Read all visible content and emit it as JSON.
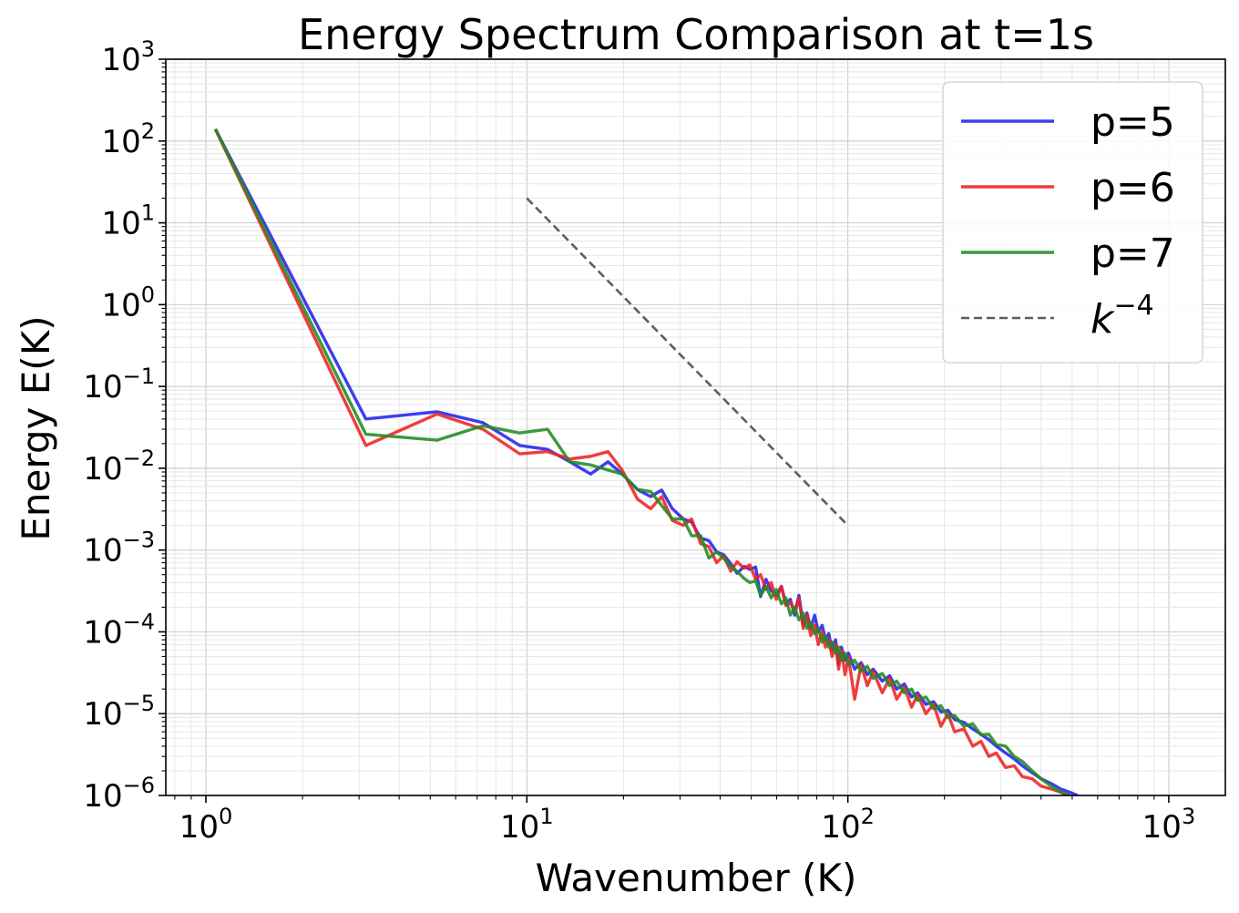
{
  "chart_data": {
    "type": "line",
    "title": "Energy Spectrum Comparison at t=1s",
    "xlabel": "Wavenumber (K)",
    "ylabel": "Energy E(K)",
    "xscale": "log",
    "yscale": "log",
    "xlim": [
      0.75,
      1500
    ],
    "ylim": [
      1e-06,
      1000
    ],
    "grid": true,
    "legend_position": "top-right",
    "x_ticks": [
      {
        "value": 1,
        "base": "10",
        "exp": "0"
      },
      {
        "value": 10,
        "base": "10",
        "exp": "1"
      },
      {
        "value": 100,
        "base": "10",
        "exp": "2"
      },
      {
        "value": 1000,
        "base": "10",
        "exp": "3"
      }
    ],
    "y_ticks": [
      {
        "value": 1e-06,
        "base": "10",
        "exp": "−6"
      },
      {
        "value": 1e-05,
        "base": "10",
        "exp": "−5"
      },
      {
        "value": 0.0001,
        "base": "10",
        "exp": "−4"
      },
      {
        "value": 0.001,
        "base": "10",
        "exp": "−3"
      },
      {
        "value": 0.01,
        "base": "10",
        "exp": "−2"
      },
      {
        "value": 0.1,
        "base": "10",
        "exp": "−1"
      },
      {
        "value": 1,
        "base": "10",
        "exp": "0"
      },
      {
        "value": 10,
        "base": "10",
        "exp": "1"
      },
      {
        "value": 100,
        "base": "10",
        "exp": "2"
      },
      {
        "value": 1000,
        "base": "10",
        "exp": "3"
      }
    ],
    "series": [
      {
        "name": "p=5",
        "color": "#2222ee",
        "x": [
          1.07,
          3.15,
          5.25,
          7.3,
          9.5,
          11.6,
          13.6,
          15.8,
          17.9,
          19.8,
          22.1,
          24.3,
          26.3,
          28.4,
          30.7,
          32.6,
          34.8,
          36.9,
          39.0,
          41.0,
          43.2,
          45.2,
          47.5,
          49.5,
          51.6,
          53.5,
          55.6,
          57.7,
          59.8,
          62.1,
          64.1,
          66.2,
          68.3,
          70.4,
          72.6,
          74.6,
          76.6,
          78.8,
          80.9,
          83.2,
          85.1,
          87.2,
          89.3,
          91.6,
          93.6,
          95.5,
          98.0,
          100.4,
          105,
          110,
          115,
          120,
          128,
          135,
          142,
          150,
          158,
          165,
          175,
          185,
          195,
          205,
          215,
          230,
          245,
          260,
          275,
          290,
          310,
          330,
          350,
          375,
          400,
          430,
          460,
          490,
          520
        ],
        "values": [
          140,
          0.04,
          0.049,
          0.036,
          0.019,
          0.017,
          0.012,
          0.0085,
          0.012,
          0.0085,
          0.0055,
          0.0045,
          0.0054,
          0.0032,
          0.0024,
          0.0022,
          0.0014,
          0.0013,
          0.00095,
          0.00088,
          0.00068,
          0.00052,
          0.00063,
          0.00058,
          0.00062,
          0.00027,
          0.00044,
          0.00032,
          0.00028,
          0.00036,
          0.00022,
          0.00025,
          0.00016,
          0.00028,
          0.00012,
          0.00017,
          0.00011,
          0.00016,
          0.0001,
          0.00012,
          8e-05,
          9.5e-05,
          6e-05,
          8e-05,
          4e-05,
          6.5e-05,
          4.5e-05,
          5.5e-05,
          3.5e-05,
          4.2e-05,
          3e-05,
          3.5e-05,
          2.5e-05,
          2.9e-05,
          2e-05,
          2.3e-05,
          1.6e-05,
          1.8e-05,
          1.3e-05,
          1.4e-05,
          1.05e-05,
          1.1e-05,
          8.5e-06,
          7.8e-06,
          6.5e-06,
          5.6e-06,
          4.8e-06,
          4e-06,
          3.3e-06,
          2.8e-06,
          2.3e-06,
          1.9e-06,
          1.6e-06,
          1.4e-06,
          1.2e-06,
          1.1e-06,
          1e-06
        ]
      },
      {
        "name": "p=6",
        "color": "#ee2222",
        "x": [
          1.07,
          3.15,
          5.25,
          7.3,
          9.5,
          11.6,
          13.6,
          15.8,
          17.9,
          19.8,
          22.1,
          24.3,
          26.3,
          28.4,
          30.7,
          32.6,
          34.8,
          36.9,
          39.0,
          41.0,
          43.2,
          45.2,
          47.5,
          49.5,
          51.6,
          53.5,
          55.6,
          57.7,
          59.8,
          62.1,
          64.1,
          66.2,
          68.3,
          70.4,
          72.6,
          74.6,
          76.6,
          78.8,
          80.9,
          83.2,
          85.1,
          87.2,
          89.3,
          91.6,
          93.6,
          95.5,
          98.0,
          100.4,
          105,
          110,
          115,
          120,
          128,
          135,
          142,
          150,
          158,
          165,
          175,
          185,
          195,
          205,
          215,
          230,
          245,
          260,
          275,
          290,
          310,
          330,
          350,
          375,
          400,
          430,
          460,
          490
        ],
        "values": [
          140,
          0.019,
          0.046,
          0.03,
          0.015,
          0.016,
          0.013,
          0.014,
          0.016,
          0.0095,
          0.0042,
          0.0032,
          0.0045,
          0.0023,
          0.002,
          0.0024,
          0.0012,
          0.0011,
          0.0007,
          0.00085,
          0.00055,
          0.00072,
          0.0006,
          0.00066,
          0.00044,
          0.0005,
          0.00033,
          0.0004,
          0.00025,
          0.00036,
          0.00021,
          0.00023,
          0.00018,
          0.00026,
          0.00011,
          0.00016,
          9e-05,
          0.00012,
          7e-05,
          0.0001,
          6.5e-05,
          8e-05,
          5e-05,
          7e-05,
          3.5e-05,
          6e-05,
          3e-05,
          5e-05,
          1.5e-05,
          4e-05,
          2.2e-05,
          3.3e-05,
          1.8e-05,
          2.7e-05,
          1.5e-05,
          2.1e-05,
          1.2e-05,
          1.7e-05,
          1e-05,
          1.3e-05,
          7e-06,
          1e-05,
          6e-06,
          6.5e-06,
          4e-06,
          4.6e-06,
          3e-06,
          3.3e-06,
          2.2e-06,
          2.3e-06,
          1.7e-06,
          1.6e-06,
          1.3e-06,
          1.2e-06,
          1.1e-06,
          1e-06
        ]
      },
      {
        "name": "p=7",
        "color": "#228b22",
        "x": [
          1.07,
          3.15,
          5.25,
          7.3,
          9.5,
          11.6,
          13.6,
          15.8,
          17.9,
          19.8,
          22.1,
          24.3,
          26.3,
          28.4,
          30.7,
          32.6,
          34.8,
          36.9,
          39.0,
          41.0,
          43.2,
          45.2,
          47.5,
          49.5,
          51.6,
          53.5,
          55.6,
          57.7,
          59.8,
          62.1,
          64.1,
          66.2,
          68.3,
          70.4,
          72.6,
          74.6,
          76.6,
          78.8,
          80.9,
          83.2,
          85.1,
          87.2,
          89.3,
          91.6,
          93.6,
          95.5,
          98.0,
          100.4,
          105,
          110,
          115,
          120,
          128,
          135,
          142,
          150,
          158,
          165,
          175,
          185,
          195,
          205,
          215,
          230,
          245,
          260,
          275,
          290,
          310,
          330,
          350,
          375,
          400,
          430,
          460,
          490
        ],
        "values": [
          140,
          0.026,
          0.022,
          0.033,
          0.027,
          0.03,
          0.012,
          0.011,
          0.0095,
          0.0085,
          0.0055,
          0.0052,
          0.0035,
          0.0024,
          0.0024,
          0.0015,
          0.0015,
          0.0008,
          0.00095,
          0.0008,
          0.00062,
          0.00055,
          0.00045,
          0.0004,
          0.00042,
          0.00028,
          0.00036,
          0.00026,
          0.00033,
          0.00022,
          0.00026,
          0.00016,
          0.0002,
          0.00014,
          0.00017,
          0.00011,
          0.00013,
          9.5e-05,
          0.00011,
          7.5e-05,
          9e-05,
          6.5e-05,
          7.5e-05,
          5.5e-05,
          6.5e-05,
          4.5e-05,
          5.5e-05,
          4e-05,
          4.5e-05,
          3.3e-05,
          3.8e-05,
          2.7e-05,
          3.1e-05,
          2.2e-05,
          2.5e-05,
          1.8e-05,
          2e-05,
          1.45e-05,
          1.6e-05,
          1.15e-05,
          1.25e-05,
          9e-06,
          9.5e-06,
          7e-06,
          7.5e-06,
          5.5e-06,
          5.6e-06,
          4.2e-06,
          4e-06,
          3e-06,
          2.6e-06,
          2e-06,
          1.6e-06,
          1.3e-06,
          1.1e-06,
          1e-06
        ]
      },
      {
        "name": "k^-4",
        "label_base": "k",
        "label_exp": "−4",
        "color": "#555555",
        "dashed": true,
        "x": [
          10,
          100
        ],
        "values": [
          20,
          0.002
        ]
      }
    ]
  }
}
